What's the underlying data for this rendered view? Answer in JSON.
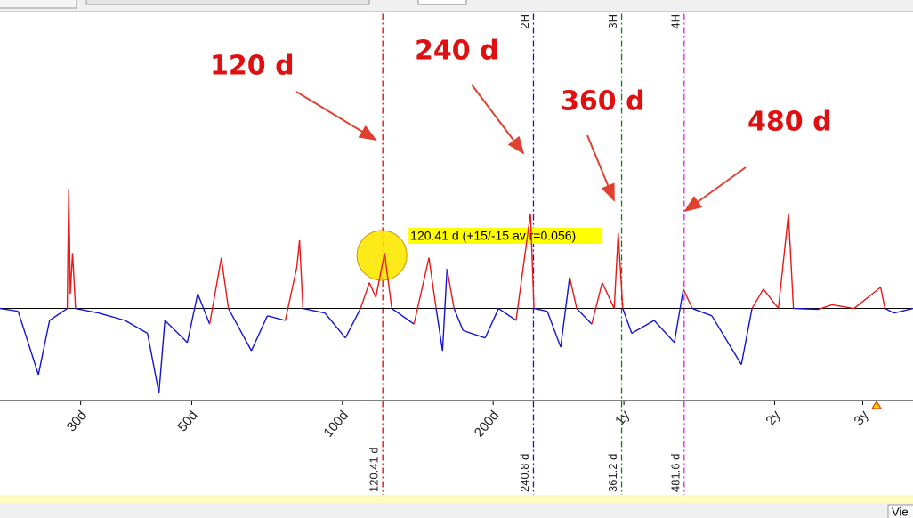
{
  "chart_data": {
    "type": "line",
    "xscale": "log",
    "xlim": [
      20.7,
      1380
    ],
    "ylim": [
      -1,
      3.2
    ],
    "xticks": [
      {
        "value": 30,
        "label": "30d"
      },
      {
        "value": 50,
        "label": "50d"
      },
      {
        "value": 100,
        "label": "100d"
      },
      {
        "value": 200,
        "label": "200d"
      },
      {
        "value": 365,
        "label": "1y"
      },
      {
        "value": 730,
        "label": "2y"
      },
      {
        "value": 1095,
        "label": "3y"
      }
    ],
    "colors": {
      "positive": "#e81818",
      "negative": "#1414d4"
    },
    "x": [
      20.7,
      22.5,
      24.7,
      26.0,
      28.2,
      28.4,
      28.6,
      28.9,
      29.3,
      32.6,
      36.8,
      40.8,
      43.0,
      44.2,
      49.0,
      51.4,
      54.3,
      57.3,
      59.2,
      65.8,
      70.8,
      76.9,
      81.1,
      82.1,
      83.4,
      92.3,
      101.4,
      108.7,
      113.2,
      116.6,
      121.4,
      125.5,
      139.0,
      148.9,
      153.9,
      158.5,
      161.8,
      167.1,
      174.2,
      192.8,
      205.1,
      222.3,
      237.5,
      241.4,
      256.6,
      272.9,
      284.4,
      293.8,
      314.8,
      330.4,
      349.1,
      355.6,
      363.1,
      378.4,
      419.6,
      460.4,
      479.8,
      500.0,
      547.0,
      626.6,
      658.0,
      693.4,
      743.0,
      778.0,
      796.2,
      893.2,
      950.6,
      1052,
      1189,
      1213,
      1264,
      1380
    ],
    "series": [
      {
        "values": [
          0,
          -0.03,
          -0.72,
          -0.13,
          0,
          1.3,
          0.16,
          0.6,
          0,
          -0.05,
          -0.13,
          -0.27,
          -0.92,
          -0.13,
          -0.37,
          0.16,
          -0.17,
          0.55,
          0,
          -0.46,
          -0.08,
          -0.13,
          0.45,
          0.74,
          0,
          -0.05,
          -0.32,
          0,
          0.28,
          0.12,
          0.6,
          0,
          -0.17,
          0.55,
          0,
          -0.46,
          0.43,
          0,
          -0.24,
          -0.32,
          0,
          -0.13,
          1.03,
          0,
          -0.03,
          -0.42,
          0.34,
          0,
          -0.17,
          0.28,
          0,
          0.82,
          0,
          -0.27,
          -0.13,
          -0.37,
          0.21,
          0,
          -0.08,
          -0.61,
          0,
          0.21,
          0,
          1.03,
          0,
          -0.01,
          0.04,
          0,
          0.23,
          0,
          -0.05,
          0
        ]
      }
    ],
    "cycles": [
      {
        "value": 120.41,
        "label": "120.41 d",
        "color": "#e00000"
      },
      {
        "value": 240.8,
        "label": "240.8 d",
        "color": "#1010e0",
        "harmonic": "2H"
      },
      {
        "value": 361.2,
        "label": "361.2 d",
        "color": "#108010",
        "harmonic": "3H"
      },
      {
        "value": 481.6,
        "label": "481.6 d",
        "color": "#e020e0",
        "harmonic": "4H"
      }
    ],
    "tooltip": "120.41 d (+15/-15 av r=0.056)",
    "annotations": [
      "120 d",
      "240 d",
      "360 d",
      "480 d"
    ]
  },
  "status": {
    "button": "Vie"
  }
}
